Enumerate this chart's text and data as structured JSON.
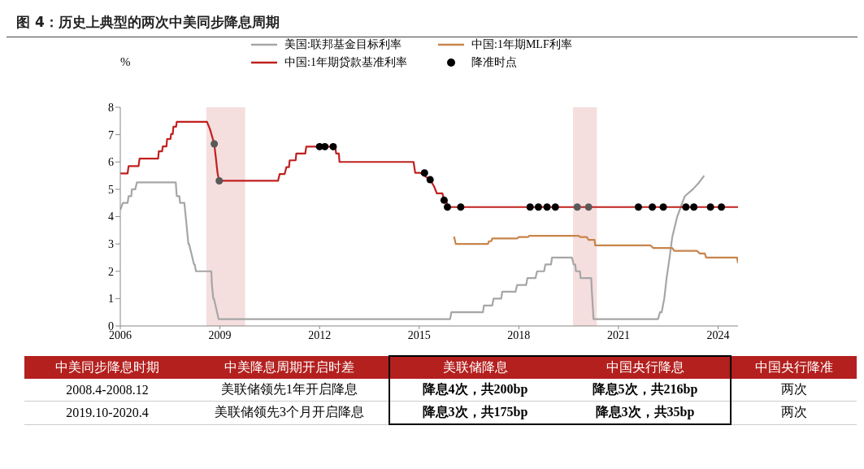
{
  "chart_data": {
    "type": "line",
    "title": "图 4：历史上典型的两次中美同步降息周期",
    "ylabel": "%",
    "xlim": [
      2006,
      2024.6
    ],
    "xticks": [
      2006,
      2009,
      2012,
      2015,
      2018,
      2021,
      2024
    ],
    "ylim": [
      0,
      8
    ],
    "yticks": [
      0,
      1,
      2,
      3,
      4,
      5,
      6,
      7,
      8
    ],
    "grid": false,
    "legend": "top",
    "marker": "none",
    "series": [
      {
        "name": "美国:联邦基金目标利率",
        "color": "#a6a6a6",
        "x": [
          2006.0,
          2006.08,
          2006.1,
          2006.22,
          2006.25,
          2006.33,
          2006.35,
          2006.45,
          2006.5,
          2007.67,
          2007.7,
          2007.78,
          2007.8,
          2007.93,
          2007.95,
          2008.05,
          2008.07,
          2008.22,
          2008.24,
          2008.28,
          2008.3,
          2008.74,
          2008.76,
          2008.8,
          2008.82,
          2008.96,
          2008.98,
          2015.93,
          2015.97,
          2016.92,
          2016.95,
          2017.2,
          2017.24,
          2017.47,
          2017.5,
          2017.9,
          2017.95,
          2018.0,
          2018.22,
          2018.26,
          2018.5,
          2018.55,
          2018.76,
          2018.8,
          2018.97,
          2019.0,
          2019.6,
          2019.65,
          2019.7,
          2019.72,
          2019.84,
          2019.86,
          2020.18,
          2020.2,
          2020.25,
          2022.19,
          2022.25,
          2022.3,
          2022.38,
          2022.45,
          2022.54,
          2022.62,
          2022.77,
          2022.92,
          2023.0,
          2023.24,
          2023.43,
          2023.58
        ],
        "values": [
          4.25,
          4.5,
          4.5,
          4.5,
          4.75,
          4.75,
          5.0,
          5.0,
          5.25,
          5.25,
          4.75,
          4.75,
          4.5,
          4.5,
          4.25,
          3.0,
          3.0,
          2.25,
          2.25,
          2.0,
          2.0,
          2.0,
          1.5,
          1.0,
          1.0,
          0.25,
          0.25,
          0.25,
          0.5,
          0.5,
          0.75,
          0.75,
          1.0,
          1.0,
          1.25,
          1.25,
          1.5,
          1.5,
          1.5,
          1.75,
          1.75,
          2.0,
          2.0,
          2.25,
          2.25,
          2.5,
          2.5,
          2.25,
          2.25,
          2.0,
          2.0,
          1.75,
          1.75,
          1.25,
          0.25,
          0.25,
          0.5,
          0.5,
          1.0,
          1.75,
          2.5,
          3.25,
          4.0,
          4.5,
          4.75,
          5.0,
          5.25,
          5.5
        ]
      },
      {
        "name": "中国:1年期MLF利率",
        "color": "#c8844a",
        "x": [
          2016.05,
          2016.1,
          2017.07,
          2017.1,
          2017.17,
          2017.2,
          2017.94,
          2018.0,
          2018.28,
          2018.31,
          2019.8,
          2019.85,
          2020.05,
          2020.1,
          2020.28,
          2020.3,
          2021.96,
          2022.05,
          2022.62,
          2022.68,
          2023.36,
          2023.45,
          2023.6,
          2023.64,
          2024.57,
          2024.6
        ],
        "values": [
          3.27,
          3.0,
          3.0,
          3.1,
          3.1,
          3.2,
          3.2,
          3.25,
          3.25,
          3.3,
          3.3,
          3.25,
          3.25,
          3.15,
          3.15,
          2.95,
          2.95,
          2.85,
          2.85,
          2.75,
          2.75,
          2.65,
          2.65,
          2.5,
          2.5,
          2.3
        ]
      },
      {
        "name": "中国:1年期贷款基准利率",
        "color": "#c0201f",
        "x": [
          2006.0,
          2006.22,
          2006.25,
          2006.55,
          2006.58,
          2007.14,
          2007.16,
          2007.26,
          2007.28,
          2007.39,
          2007.41,
          2007.51,
          2007.53,
          2007.58,
          2007.6,
          2007.68,
          2007.7,
          2007.97,
          2007.99,
          2008.61,
          2008.7,
          2008.83,
          2008.88,
          2008.93,
          2008.98,
          2010.75,
          2010.8,
          2010.95,
          2011.0,
          2011.08,
          2011.1,
          2011.28,
          2011.3,
          2011.57,
          2011.6,
          2012.47,
          2012.5,
          2012.58,
          2012.6,
          2014.83,
          2014.88,
          2015.03,
          2015.33,
          2015.45,
          2015.53,
          2015.7,
          2015.75,
          2015.82,
          2015.85,
          2024.6
        ],
        "values": [
          5.58,
          5.58,
          5.85,
          5.85,
          6.12,
          6.12,
          6.39,
          6.39,
          6.57,
          6.57,
          6.84,
          6.84,
          7.02,
          7.02,
          7.29,
          7.29,
          7.47,
          7.47,
          7.47,
          7.47,
          7.2,
          6.66,
          6.12,
          5.58,
          5.31,
          5.31,
          5.56,
          5.56,
          5.81,
          5.81,
          6.06,
          6.06,
          6.31,
          6.31,
          6.56,
          6.56,
          6.31,
          6.31,
          6.0,
          6.0,
          5.6,
          5.6,
          5.35,
          5.1,
          4.85,
          4.85,
          4.6,
          4.6,
          4.35,
          4.35
        ]
      },
      {
        "name": "降准时点",
        "type": "scatter",
        "marker": "circle",
        "color": "#000000",
        "x": [
          2008.83,
          2008.98,
          2012.0,
          2012.16,
          2012.41,
          2015.16,
          2015.33,
          2015.75,
          2015.85,
          2016.25,
          2018.34,
          2018.59,
          2018.85,
          2019.1,
          2019.76,
          2020.1,
          2021.6,
          2022.02,
          2022.35,
          2023.03,
          2023.27,
          2023.77,
          2024.1
        ],
        "values": [
          6.66,
          5.31,
          6.56,
          6.56,
          6.56,
          5.6,
          5.35,
          4.6,
          4.35,
          4.35,
          4.35,
          4.35,
          4.35,
          4.35,
          4.35,
          4.35,
          4.35,
          4.35,
          4.35,
          4.35,
          4.35,
          4.35,
          4.35
        ],
        "colors": [
          "#595959",
          "#595959",
          "#000000",
          "#000000",
          "#000000",
          "#000000",
          "#000000",
          "#000000",
          "#000000",
          "#000000",
          "#000000",
          "#000000",
          "#000000",
          "#000000",
          "#595959",
          "#595959",
          "#000000",
          "#000000",
          "#000000",
          "#000000",
          "#000000",
          "#000000",
          "#000000"
        ]
      }
    ],
    "bands": [
      {
        "axis": "x",
        "from": 2008.59,
        "to": 2009.76,
        "color": "#f5dede"
      },
      {
        "axis": "x",
        "from": 2019.63,
        "to": 2020.35,
        "color": "#f5dede"
      }
    ],
    "annotations": [
      "中美同步降息时期",
      "中美降息周期开启时差",
      "美联储降息",
      "中国央行降息",
      "中国央行降准",
      "2008.4-2008.12",
      "美联储领先1年开启降息",
      "降息4次，共200bp",
      "降息5次，共216bp",
      "两次",
      "2019.10-2020.4",
      "美联储领先3个月开启降息",
      "降息3次，共175bp",
      "降息3次，共35bp",
      "两次"
    ]
  }
}
